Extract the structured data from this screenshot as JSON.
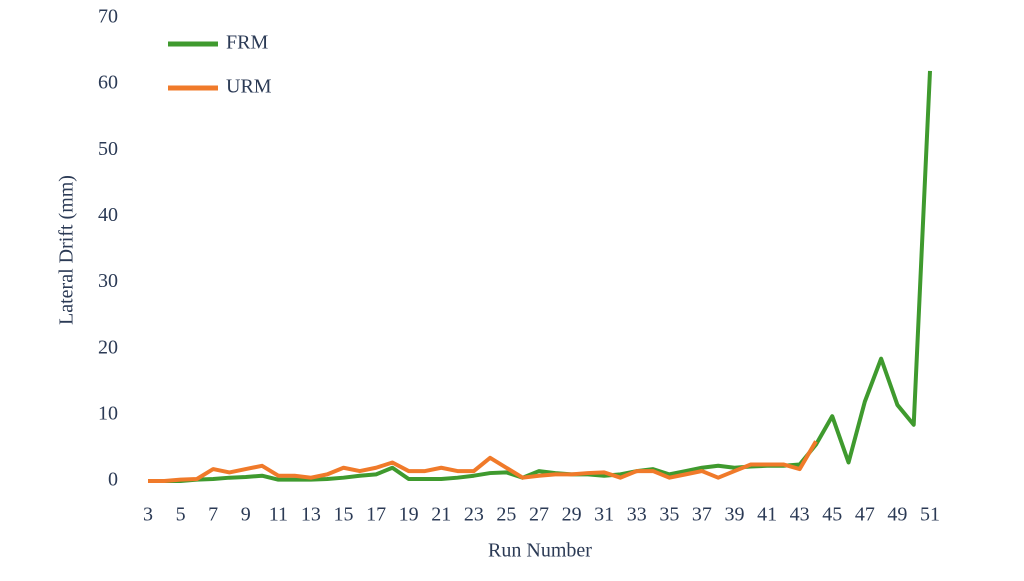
{
  "chart_data": {
    "type": "line",
    "x_label": "Run Number",
    "y_label": "Lateral Drift (mm)",
    "x": [
      3,
      4,
      5,
      6,
      7,
      8,
      9,
      10,
      11,
      12,
      13,
      14,
      15,
      16,
      17,
      18,
      19,
      20,
      21,
      22,
      23,
      24,
      25,
      26,
      27,
      28,
      29,
      30,
      31,
      32,
      33,
      34,
      35,
      36,
      37,
      38,
      39,
      40,
      41,
      42,
      43,
      44,
      45,
      46,
      47,
      48,
      49,
      50,
      51
    ],
    "series": [
      {
        "name": "FRM",
        "color": "#3f9a2e",
        "values": [
          0,
          0,
          0,
          0.2,
          0.3,
          0.5,
          0.6,
          0.8,
          0.2,
          0.2,
          0.2,
          0.3,
          0.5,
          0.8,
          1.0,
          2.0,
          0.3,
          0.3,
          0.3,
          0.5,
          0.8,
          1.2,
          1.3,
          0.5,
          1.5,
          1.2,
          1.0,
          1.0,
          0.8,
          1.0,
          1.5,
          1.8,
          1.0,
          1.5,
          2.0,
          2.3,
          2.0,
          2.2,
          2.3,
          2.3,
          2.5,
          5.5,
          9.8,
          2.8,
          12,
          18.5,
          11.5,
          8.5,
          62
        ]
      },
      {
        "name": "URM",
        "color": "#f07a2a",
        "values": [
          0,
          0,
          0.2,
          0.3,
          1.8,
          1.3,
          1.8,
          2.3,
          0.8,
          0.8,
          0.5,
          1.0,
          2.0,
          1.5,
          2.0,
          2.8,
          1.5,
          1.5,
          2.0,
          1.5,
          1.5,
          3.5,
          2.0,
          0.5,
          0.8,
          1.0,
          1.0,
          1.2,
          1.3,
          0.5,
          1.5,
          1.5,
          0.5,
          1.0,
          1.5,
          0.5,
          1.5,
          2.5,
          2.5,
          2.5,
          1.8,
          6.0,
          null,
          null,
          null,
          null,
          null,
          null,
          null
        ]
      }
    ],
    "xlim": [
      3,
      51
    ],
    "xticks": [
      3,
      5,
      7,
      9,
      11,
      13,
      15,
      17,
      19,
      21,
      23,
      25,
      27,
      29,
      31,
      33,
      35,
      37,
      39,
      41,
      43,
      45,
      47,
      49,
      51
    ],
    "ylim": [
      0,
      70
    ],
    "yticks": [
      0,
      10,
      20,
      30,
      40,
      50,
      60,
      70
    ],
    "grid": false,
    "legend": "top-left"
  }
}
